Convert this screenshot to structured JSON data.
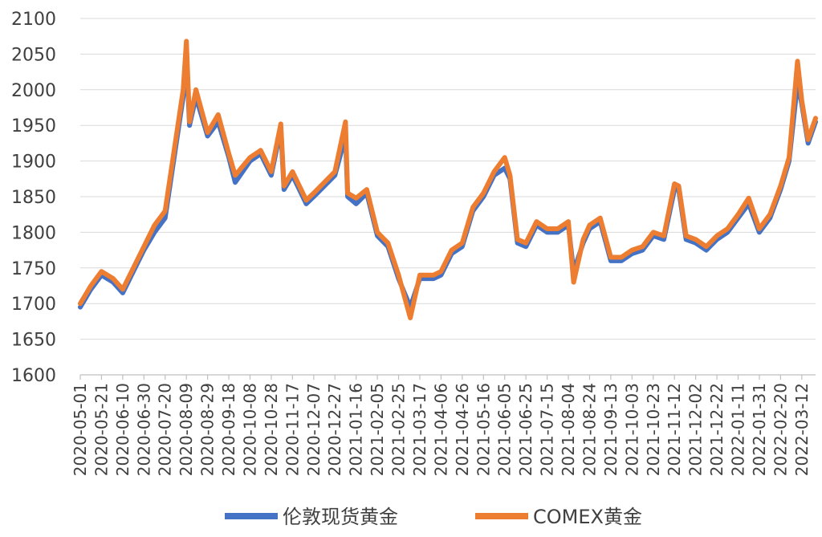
{
  "chart_data": {
    "type": "line",
    "title": "",
    "xlabel": "",
    "ylabel": "",
    "ylim": [
      1600,
      2100
    ],
    "yticks": [
      1600,
      1650,
      1700,
      1750,
      1800,
      1850,
      1900,
      1950,
      2000,
      2050,
      2100
    ],
    "grid": true,
    "legend_position": "bottom",
    "x_tick_labels": [
      "2020-05-01",
      "2020-05-21",
      "2020-06-10",
      "2020-06-30",
      "2020-07-20",
      "2020-08-09",
      "2020-08-29",
      "2020-09-18",
      "2020-10-08",
      "2020-10-28",
      "2020-11-17",
      "2020-12-07",
      "2020-12-27",
      "2021-01-16",
      "2021-02-05",
      "2021-02-25",
      "2021-03-17",
      "2021-04-06",
      "2021-04-26",
      "2021-05-16",
      "2021-06-05",
      "2021-06-25",
      "2021-07-15",
      "2021-08-04",
      "2021-08-24",
      "2021-09-13",
      "2021-10-03",
      "2021-10-23",
      "2021-11-12",
      "2021-12-02",
      "2021-12-22",
      "2022-01-11",
      "2022-01-31",
      "2022-02-20",
      "2022-03-12"
    ],
    "x": [
      "2020-05-01",
      "2020-05-11",
      "2020-05-21",
      "2020-06-01",
      "2020-06-10",
      "2020-06-20",
      "2020-06-30",
      "2020-07-10",
      "2020-07-20",
      "2020-07-28",
      "2020-08-06",
      "2020-08-09",
      "2020-08-12",
      "2020-08-18",
      "2020-08-29",
      "2020-09-08",
      "2020-09-18",
      "2020-09-24",
      "2020-10-08",
      "2020-10-18",
      "2020-10-28",
      "2020-11-06",
      "2020-11-09",
      "2020-11-17",
      "2020-11-30",
      "2020-12-07",
      "2020-12-17",
      "2020-12-27",
      "2021-01-06",
      "2021-01-08",
      "2021-01-16",
      "2021-01-26",
      "2021-02-05",
      "2021-02-15",
      "2021-02-25",
      "2021-03-08",
      "2021-03-17",
      "2021-03-30",
      "2021-04-06",
      "2021-04-16",
      "2021-04-26",
      "2021-05-06",
      "2021-05-16",
      "2021-05-26",
      "2021-06-05",
      "2021-06-10",
      "2021-06-17",
      "2021-06-25",
      "2021-07-05",
      "2021-07-15",
      "2021-07-25",
      "2021-08-04",
      "2021-08-09",
      "2021-08-18",
      "2021-08-24",
      "2021-09-03",
      "2021-09-13",
      "2021-09-23",
      "2021-10-03",
      "2021-10-13",
      "2021-10-23",
      "2021-11-02",
      "2021-11-12",
      "2021-11-16",
      "2021-11-23",
      "2021-12-02",
      "2021-12-12",
      "2021-12-22",
      "2022-01-01",
      "2022-01-11",
      "2022-01-21",
      "2022-01-31",
      "2022-02-10",
      "2022-02-20",
      "2022-02-28",
      "2022-03-08",
      "2022-03-12",
      "2022-03-18",
      "2022-03-25"
    ],
    "series": [
      {
        "name": "伦敦现货黄金",
        "color": "#4472C4",
        "values": [
          1695,
          1720,
          1740,
          1730,
          1715,
          1745,
          1775,
          1800,
          1820,
          1900,
          1990,
          2045,
          1950,
          1990,
          1935,
          1955,
          1905,
          1870,
          1900,
          1910,
          1880,
          1945,
          1860,
          1880,
          1840,
          1850,
          1865,
          1880,
          1935,
          1850,
          1840,
          1855,
          1795,
          1780,
          1735,
          1695,
          1735,
          1735,
          1740,
          1770,
          1780,
          1830,
          1850,
          1880,
          1890,
          1875,
          1785,
          1780,
          1810,
          1800,
          1800,
          1810,
          1745,
          1785,
          1805,
          1815,
          1760,
          1760,
          1770,
          1775,
          1795,
          1790,
          1860,
          1860,
          1790,
          1785,
          1775,
          1790,
          1800,
          1820,
          1840,
          1800,
          1820,
          1860,
          1900,
          2010,
          1980,
          1925,
          1955
        ]
      },
      {
        "name": "COMEX黄金",
        "color": "#ED7D31",
        "values": [
          1700,
          1725,
          1745,
          1735,
          1720,
          1750,
          1780,
          1810,
          1830,
          1910,
          2000,
          2068,
          1955,
          2000,
          1940,
          1965,
          1910,
          1880,
          1905,
          1915,
          1885,
          1952,
          1865,
          1885,
          1845,
          1855,
          1870,
          1885,
          1955,
          1855,
          1848,
          1860,
          1800,
          1785,
          1740,
          1680,
          1740,
          1740,
          1745,
          1775,
          1785,
          1835,
          1855,
          1885,
          1905,
          1880,
          1790,
          1785,
          1815,
          1805,
          1805,
          1815,
          1730,
          1790,
          1810,
          1820,
          1765,
          1765,
          1775,
          1780,
          1800,
          1795,
          1868,
          1865,
          1795,
          1790,
          1780,
          1795,
          1805,
          1825,
          1848,
          1805,
          1825,
          1865,
          1905,
          2040,
          1985,
          1930,
          1960
        ]
      }
    ]
  }
}
